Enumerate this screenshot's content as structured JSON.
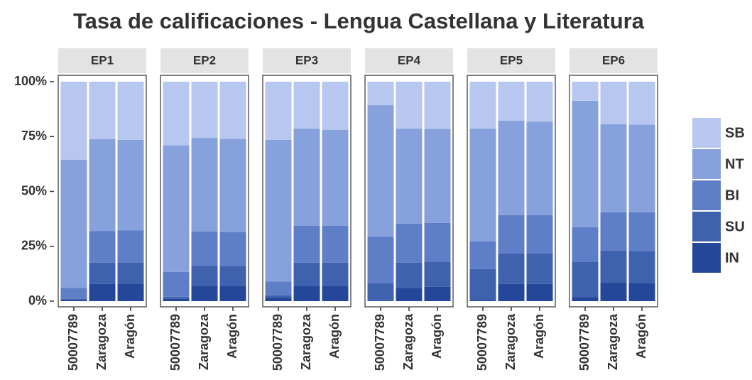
{
  "title": "Tasa de calificaciones - Lengua Castellana y Literatura",
  "chart_data": [
    {
      "type": "bar",
      "stacked": true,
      "title": "EP1",
      "categories": [
        "50007789",
        "Zaragoza",
        "Aragón"
      ],
      "ylim": [
        0,
        100
      ],
      "yticks": [
        {
          "value": 0,
          "label": "0%"
        },
        {
          "value": 25,
          "label": "25%"
        },
        {
          "value": 50,
          "label": "50%"
        },
        {
          "value": 75,
          "label": "75%"
        },
        {
          "value": 100,
          "label": "100%"
        }
      ],
      "series": [
        {
          "name": "SB",
          "color": "#b7c7f0",
          "values": [
            35.5,
            26.2,
            26.5
          ]
        },
        {
          "name": "NT",
          "color": "#86a1dc",
          "values": [
            58.5,
            41.8,
            41.3
          ]
        },
        {
          "name": "BI",
          "color": "#5f7ec8",
          "values": [
            5,
            14.5,
            14.5
          ]
        },
        {
          "name": "SU",
          "color": "#3e62ad",
          "values": [
            0.5,
            9.7,
            9.7
          ]
        },
        {
          "name": "IN",
          "color": "#24479a",
          "values": [
            0.5,
            7.8,
            8
          ]
        }
      ]
    },
    {
      "type": "bar",
      "stacked": true,
      "title": "EP2",
      "categories": [
        "50007789",
        "Zaragoza",
        "Aragón"
      ],
      "series": [
        {
          "name": "SB",
          "color": "#b7c7f0",
          "values": [
            29,
            25.6,
            26
          ]
        },
        {
          "name": "NT",
          "color": "#86a1dc",
          "values": [
            57.7,
            42.7,
            42.5
          ]
        },
        {
          "name": "BI",
          "color": "#5f7ec8",
          "values": [
            11.3,
            15.5,
            15.5
          ]
        },
        {
          "name": "SU",
          "color": "#3e62ad",
          "values": [
            1,
            9.4,
            9.2
          ]
        },
        {
          "name": "IN",
          "color": "#24479a",
          "values": [
            1,
            6.8,
            6.8
          ]
        }
      ]
    },
    {
      "type": "bar",
      "stacked": true,
      "title": "EP3",
      "categories": [
        "50007789",
        "Zaragoza",
        "Aragón"
      ],
      "series": [
        {
          "name": "SB",
          "color": "#b7c7f0",
          "values": [
            26.5,
            21.4,
            21.9
          ]
        },
        {
          "name": "NT",
          "color": "#86a1dc",
          "values": [
            64.5,
            44.3,
            43.8
          ]
        },
        {
          "name": "BI",
          "color": "#5f7ec8",
          "values": [
            6.4,
            16.8,
            16.8
          ]
        },
        {
          "name": "SU",
          "color": "#3e62ad",
          "values": [
            1,
            10.7,
            10.5
          ]
        },
        {
          "name": "IN",
          "color": "#24479a",
          "values": [
            1.6,
            6.8,
            7
          ]
        }
      ]
    },
    {
      "type": "bar",
      "stacked": true,
      "title": "EP4",
      "categories": [
        "50007789",
        "Zaragoza",
        "Aragón"
      ],
      "series": [
        {
          "name": "SB",
          "color": "#b7c7f0",
          "values": [
            10.7,
            21.4,
            21.5
          ]
        },
        {
          "name": "NT",
          "color": "#86a1dc",
          "values": [
            59.9,
            43.3,
            42.8
          ]
        },
        {
          "name": "BI",
          "color": "#5f7ec8",
          "values": [
            21.3,
            17.8,
            17.7
          ]
        },
        {
          "name": "SU",
          "color": "#3e62ad",
          "values": [
            8.1,
            11.4,
            11.5
          ]
        },
        {
          "name": "IN",
          "color": "#24479a",
          "values": [
            0,
            6.1,
            6.5
          ]
        }
      ]
    },
    {
      "type": "bar",
      "stacked": true,
      "title": "EP5",
      "categories": [
        "50007789",
        "Zaragoza",
        "Aragón"
      ],
      "series": [
        {
          "name": "SB",
          "color": "#b7c7f0",
          "values": [
            21.4,
            17.8,
            18.2
          ]
        },
        {
          "name": "NT",
          "color": "#86a1dc",
          "values": [
            51.4,
            43,
            42.6
          ]
        },
        {
          "name": "BI",
          "color": "#5f7ec8",
          "values": [
            12.6,
            17.5,
            17.5
          ]
        },
        {
          "name": "SU",
          "color": "#3e62ad",
          "values": [
            14,
            13.9,
            13.9
          ]
        },
        {
          "name": "IN",
          "color": "#24479a",
          "values": [
            0.6,
            7.8,
            7.8
          ]
        }
      ]
    },
    {
      "type": "bar",
      "stacked": true,
      "title": "EP6",
      "categories": [
        "50007789",
        "Zaragoza",
        "Aragón"
      ],
      "series": [
        {
          "name": "SB",
          "color": "#b7c7f0",
          "values": [
            8.7,
            19.4,
            19.5
          ]
        },
        {
          "name": "NT",
          "color": "#86a1dc",
          "values": [
            57.6,
            40.1,
            40
          ]
        },
        {
          "name": "BI",
          "color": "#5f7ec8",
          "values": [
            15.9,
            17.5,
            17.6
          ]
        },
        {
          "name": "SU",
          "color": "#3e62ad",
          "values": [
            15.9,
            14.6,
            14.8
          ]
        },
        {
          "name": "IN",
          "color": "#24479a",
          "values": [
            1.9,
            8.4,
            8.1
          ]
        }
      ]
    }
  ]
}
